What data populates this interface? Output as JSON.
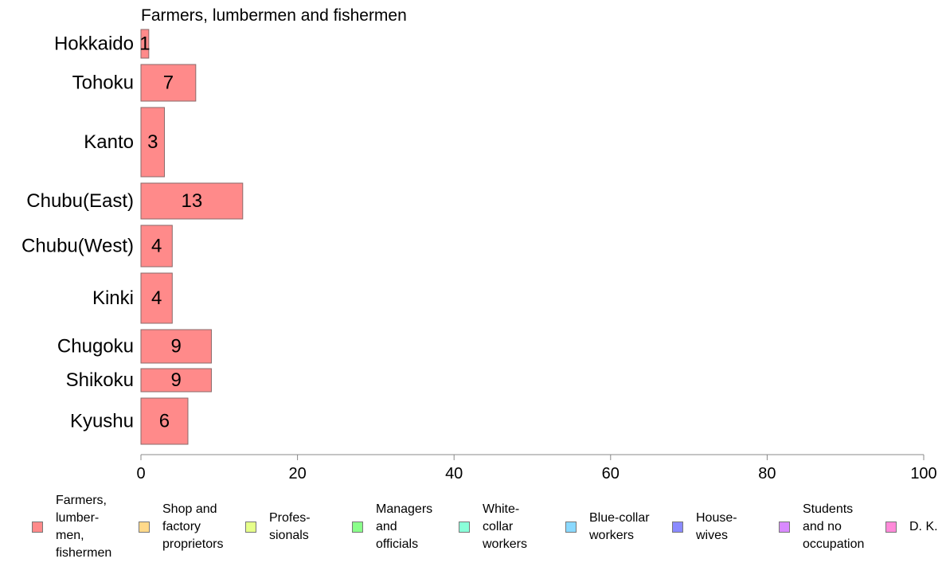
{
  "chart_data": {
    "type": "bar",
    "orientation": "horizontal",
    "title": "Farmers, lumbermen and fishermen",
    "categories": [
      "Hokkaido",
      "Tohoku",
      "Kanto",
      "Chubu(East)",
      "Chubu(West)",
      "Kinki",
      "Chugoku",
      "Shikoku",
      "Kyushu"
    ],
    "values": [
      1,
      7,
      3,
      13,
      4,
      4,
      9,
      9,
      6
    ],
    "data_labels": [
      "1",
      "7",
      "3",
      "13",
      "4",
      "4",
      "9",
      "9",
      "6"
    ],
    "xlim": [
      0,
      100
    ],
    "xticks": [
      0,
      20,
      40,
      60,
      80,
      100
    ],
    "xtick_labels": [
      "0",
      "20",
      "40",
      "60",
      "80",
      "100"
    ],
    "grid": false,
    "legend_position": "bottom",
    "bar_color": "#ff8a8a",
    "legend": [
      {
        "label": "Farmers,\nlumber-\nmen,\nfishermen",
        "color": "#ff8a8a"
      },
      {
        "label": "Shop and\nfactory\nproprietors",
        "color": "#ffd98a"
      },
      {
        "label": "Profes-\nsionals",
        "color": "#e6ff8a"
      },
      {
        "label": "Managers\nand\nofficials",
        "color": "#8aff8a"
      },
      {
        "label": "White-\ncollar\nworkers",
        "color": "#8affd9"
      },
      {
        "label": "Blue-collar\nworkers",
        "color": "#8ad9ff"
      },
      {
        "label": "House-\nwives",
        "color": "#8a8aff"
      },
      {
        "label": "Students\nand no\noccupation",
        "color": "#d98aff"
      },
      {
        "label": "D. K.",
        "color": "#ff8ad9"
      }
    ]
  }
}
